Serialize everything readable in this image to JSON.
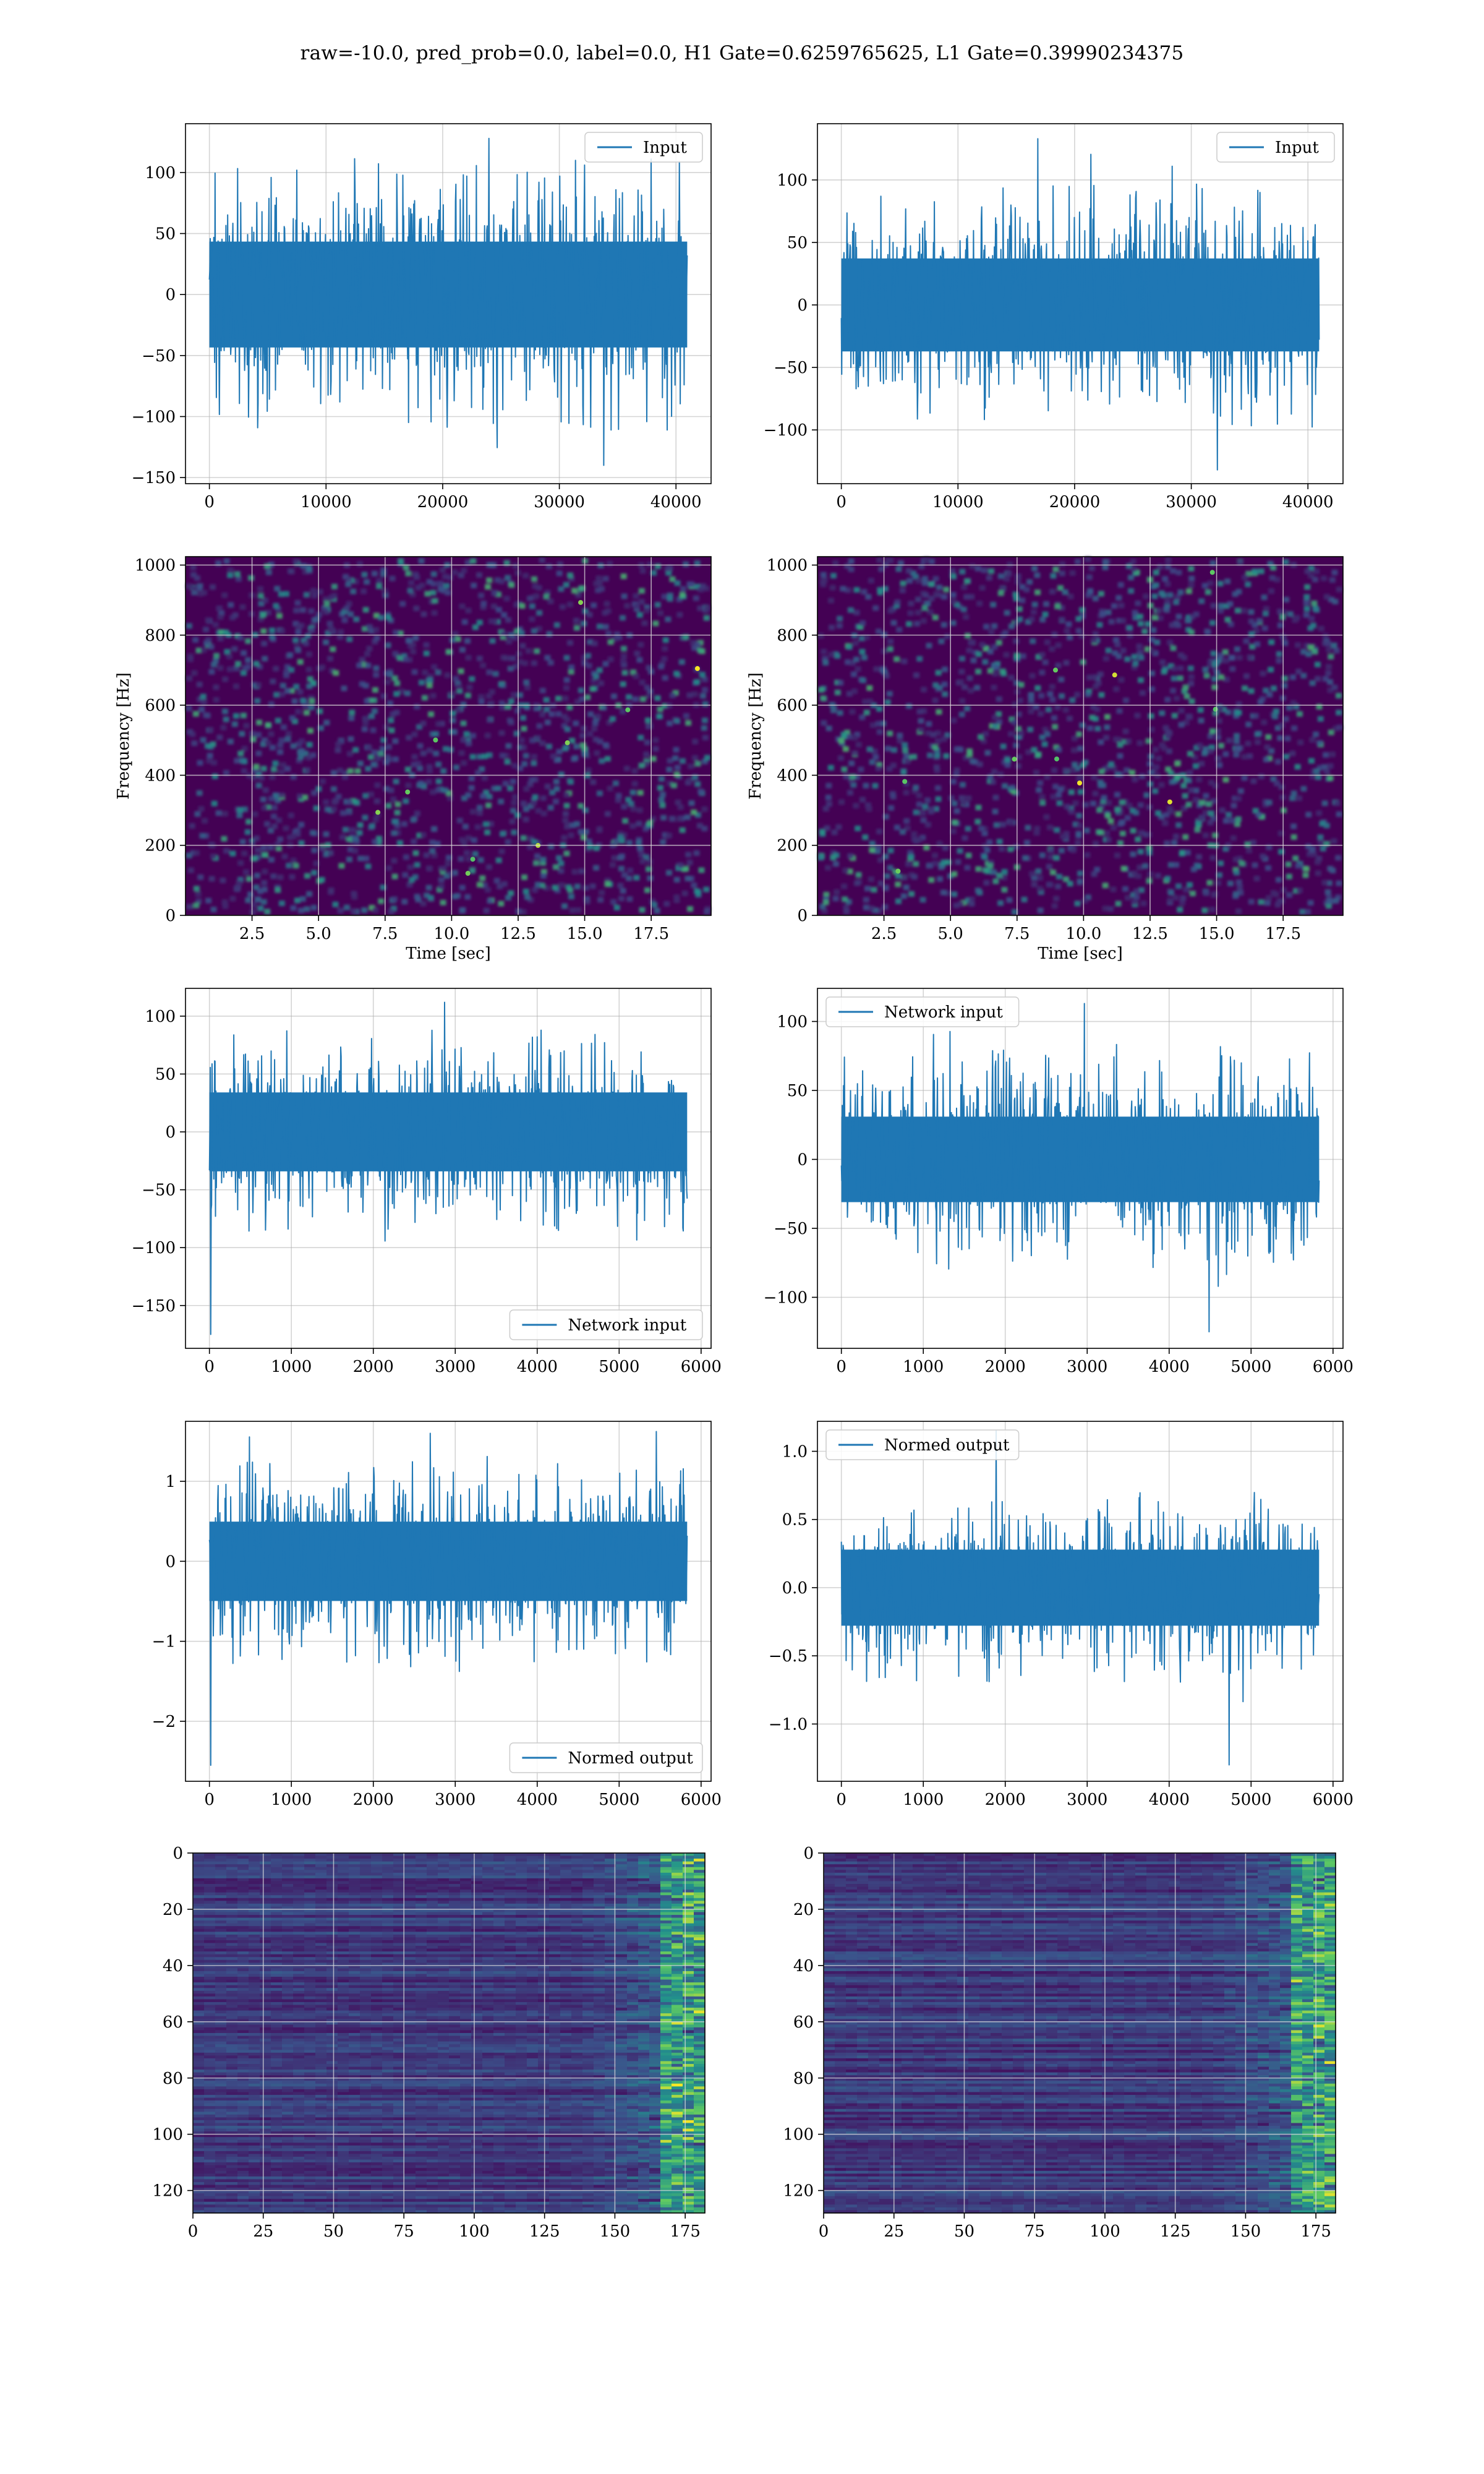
{
  "figure": {
    "suptitle": "raw=-10.0, pred_prob=0.0, label=0.0, H1 Gate=0.6259765625, L1 Gate=0.39990234375"
  },
  "colors": {
    "line": "#1f77b4",
    "grid": "#b0b0b0",
    "axes": "#000000",
    "viridis_low": "#440154",
    "viridis_mid": "#21918c",
    "viridis_high": "#fde725"
  },
  "chart_data": [
    {
      "id": "h1-input",
      "type": "line",
      "title": "",
      "xlabel": "",
      "ylabel": "",
      "legend": {
        "entries": [
          "Input"
        ],
        "placement": "upper right"
      },
      "x_range": [
        0,
        40960
      ],
      "xlim": [
        -2048,
        43008
      ],
      "ylim": [
        -155,
        140
      ],
      "xticks": [
        0,
        10000,
        20000,
        30000,
        40000
      ],
      "yticks": [
        -150,
        -100,
        -50,
        0,
        50,
        100
      ],
      "series": [
        {
          "name": "Input",
          "values": {
            "n": 40960,
            "typical_envelope": [
              -70,
              70
            ],
            "extremes": [
              -140,
              128
            ]
          }
        }
      ],
      "grid": true
    },
    {
      "id": "l1-input",
      "type": "line",
      "title": "",
      "xlabel": "",
      "ylabel": "",
      "legend": {
        "entries": [
          "Input"
        ],
        "placement": "upper right"
      },
      "x_range": [
        0,
        40960
      ],
      "xlim": [
        -2048,
        43008
      ],
      "ylim": [
        -143,
        145
      ],
      "xticks": [
        0,
        10000,
        20000,
        30000,
        40000
      ],
      "yticks": [
        -100,
        -50,
        0,
        50,
        100
      ],
      "series": [
        {
          "name": "Input",
          "values": {
            "n": 40960,
            "typical_envelope": [
              -60,
              60
            ],
            "extremes": [
              -132,
              133
            ]
          }
        }
      ],
      "grid": true
    },
    {
      "id": "h1-spectrogram",
      "type": "heatmap",
      "title": "",
      "xlabel": "Time [sec]",
      "ylabel": "Frequency [Hz]",
      "xlim": [
        0,
        19.75
      ],
      "ylim": [
        0,
        1024
      ],
      "xticks": [
        2.5,
        5.0,
        7.5,
        10.0,
        12.5,
        15.0,
        17.5
      ],
      "yticks": [
        0,
        200,
        400,
        600,
        800,
        1000
      ],
      "colormap": "viridis",
      "grid": true
    },
    {
      "id": "l1-spectrogram",
      "type": "heatmap",
      "title": "",
      "xlabel": "Time [sec]",
      "ylabel": "Frequency [Hz]",
      "xlim": [
        0,
        19.75
      ],
      "ylim": [
        0,
        1024
      ],
      "xticks": [
        2.5,
        5.0,
        7.5,
        10.0,
        12.5,
        15.0,
        17.5
      ],
      "yticks": [
        0,
        200,
        400,
        600,
        800,
        1000
      ],
      "colormap": "viridis",
      "grid": true
    },
    {
      "id": "h1-network-input",
      "type": "line",
      "title": "",
      "xlabel": "",
      "ylabel": "",
      "legend": {
        "entries": [
          "Network input"
        ],
        "placement": "lower right"
      },
      "x_range": [
        0,
        5830
      ],
      "xlim": [
        -292,
        6122
      ],
      "ylim": [
        -187,
        124
      ],
      "xticks": [
        0,
        1000,
        2000,
        3000,
        4000,
        5000,
        6000
      ],
      "yticks": [
        -150,
        -100,
        -50,
        0,
        50,
        100
      ],
      "series": [
        {
          "name": "Network input",
          "values": {
            "n": 5830,
            "typical_envelope": [
              -55,
              55
            ],
            "extremes": [
              -175,
              112
            ]
          }
        }
      ],
      "grid": true
    },
    {
      "id": "l1-network-input",
      "type": "line",
      "title": "",
      "xlabel": "",
      "ylabel": "",
      "legend": {
        "entries": [
          "Network input"
        ],
        "placement": "upper left"
      },
      "x_range": [
        0,
        5830
      ],
      "xlim": [
        -292,
        6122
      ],
      "ylim": [
        -137,
        124
      ],
      "xticks": [
        0,
        1000,
        2000,
        3000,
        4000,
        5000,
        6000
      ],
      "yticks": [
        -100,
        -50,
        0,
        50,
        100
      ],
      "series": [
        {
          "name": "Network input",
          "values": {
            "n": 5830,
            "typical_envelope": [
              -50,
              50
            ],
            "extremes": [
              -125,
              113
            ]
          }
        }
      ],
      "grid": true
    },
    {
      "id": "h1-normed-output",
      "type": "line",
      "title": "",
      "xlabel": "",
      "ylabel": "",
      "legend": {
        "entries": [
          "Normed output"
        ],
        "placement": "lower right"
      },
      "x_range": [
        0,
        5830
      ],
      "xlim": [
        -292,
        6122
      ],
      "ylim": [
        -2.75,
        1.75
      ],
      "xticks": [
        0,
        1000,
        2000,
        3000,
        4000,
        5000,
        6000
      ],
      "yticks": [
        -2,
        -1,
        0,
        1
      ],
      "series": [
        {
          "name": "Normed output",
          "values": {
            "n": 5830,
            "typical_envelope": [
              -0.8,
              0.8
            ],
            "extremes": [
              -2.55,
              1.6
            ]
          }
        }
      ],
      "grid": true
    },
    {
      "id": "l1-normed-output",
      "type": "line",
      "title": "",
      "xlabel": "",
      "ylabel": "",
      "legend": {
        "entries": [
          "Normed output"
        ],
        "placement": "upper left"
      },
      "x_range": [
        0,
        5830
      ],
      "xlim": [
        -292,
        6122
      ],
      "ylim": [
        -1.42,
        1.22
      ],
      "xticks": [
        0,
        1000,
        2000,
        3000,
        4000,
        5000,
        6000
      ],
      "yticks": [
        -1.0,
        -0.5,
        0.0,
        0.5,
        1.0
      ],
      "series": [
        {
          "name": "Normed output",
          "values": {
            "n": 5830,
            "typical_envelope": [
              -0.45,
              0.45
            ],
            "extremes": [
              -1.3,
              1.15
            ]
          }
        }
      ],
      "grid": true
    },
    {
      "id": "h1-features",
      "type": "heatmap",
      "title": "",
      "xlabel": "",
      "ylabel": "",
      "xlim": [
        0,
        182
      ],
      "ylim": [
        128,
        0
      ],
      "xticks": [
        0,
        25,
        50,
        75,
        100,
        125,
        150,
        175
      ],
      "yticks": [
        0,
        20,
        40,
        60,
        80,
        100,
        120
      ],
      "colormap": "viridis",
      "grid": true
    },
    {
      "id": "l1-features",
      "type": "heatmap",
      "title": "",
      "xlabel": "",
      "ylabel": "",
      "xlim": [
        0,
        182
      ],
      "ylim": [
        128,
        0
      ],
      "xticks": [
        0,
        25,
        50,
        75,
        100,
        125,
        150,
        175
      ],
      "yticks": [
        0,
        20,
        40,
        60,
        80,
        100,
        120
      ],
      "colormap": "viridis",
      "grid": true
    }
  ]
}
